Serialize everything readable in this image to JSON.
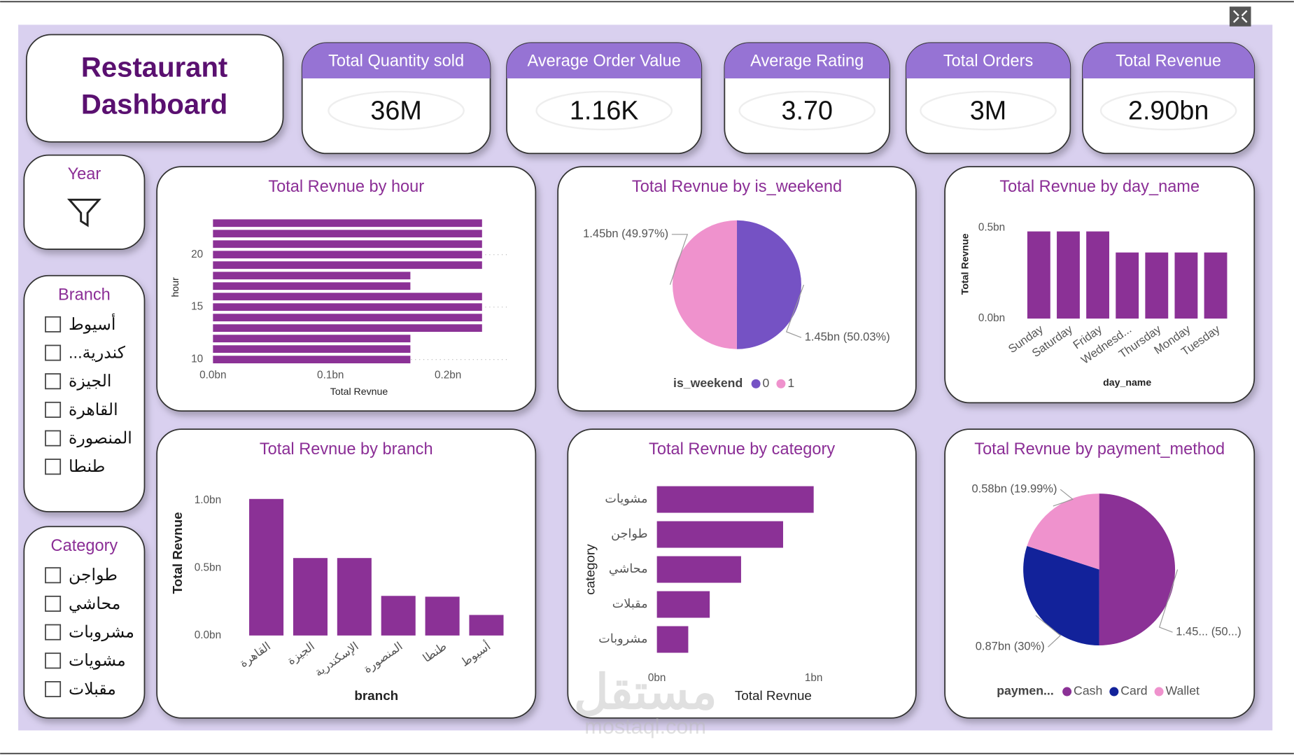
{
  "title": [
    "Restaurant",
    "Dashboard"
  ],
  "kpis": [
    {
      "label": "Total Quantity sold",
      "value": "36M"
    },
    {
      "label": "Average Order Value",
      "value": "1.16K"
    },
    {
      "label": "Average Rating",
      "value": "3.70"
    },
    {
      "label": "Total Orders",
      "value": "3M"
    },
    {
      "label": "Total Revenue",
      "value": "2.90bn"
    }
  ],
  "slicers": [
    {
      "title": "Year"
    },
    {
      "title": "Branch",
      "items": [
        "أسيوط",
        "...كندرية",
        "الجيزة",
        "القاهرة",
        "المنصورة",
        "طنطا"
      ]
    },
    {
      "title": "Category",
      "items": [
        "طواجن",
        "محاشي",
        "مشروبات",
        "مشويات",
        "مقبلات"
      ]
    }
  ],
  "watermark": [
    "مستقل",
    "mostaql.com"
  ],
  "chart_data": [
    {
      "type": "hbar",
      "title": "Total Revnue by hour",
      "categories": [
        10,
        11,
        12,
        13,
        14,
        15,
        16,
        17,
        18,
        19,
        20,
        21,
        22,
        23
      ],
      "values": [
        0.168,
        0.168,
        0.168,
        0.229,
        0.229,
        0.229,
        0.229,
        0.168,
        0.168,
        0.229,
        0.229,
        0.229,
        0.229,
        0.229
      ],
      "color": "#8b3196",
      "xlim": [
        0,
        0.25
      ],
      "xticks": [
        {
          "value": 0,
          "label": "0.0bn"
        },
        {
          "value": 0.1,
          "label": "0.1bn"
        },
        {
          "value": 0.2,
          "label": "0.2bn"
        }
      ],
      "ylim": [
        9.5,
        23.5
      ],
      "yticks": [
        10,
        15,
        20
      ],
      "xlabel": "Total Revnue",
      "ylabel": "hour",
      "grid": true
    },
    {
      "type": "pie",
      "title": "Total Revnue by is_weekend",
      "categories": [
        "0",
        "1"
      ],
      "values": [
        50.03,
        49.97
      ],
      "value_labels": [
        "1.45bn (50.03%)",
        "1.45bn (49.97%)"
      ],
      "colors": [
        "#7552c4",
        "#ef92cd"
      ],
      "legend_title": "is_weekend"
    },
    {
      "type": "bar",
      "title": "Total Revnue by day_name",
      "categories": [
        "Sunday",
        "Saturday",
        "Friday",
        "Wednesd...",
        "Thursday",
        "Monday",
        "Tuesday"
      ],
      "values": [
        0.48,
        0.48,
        0.48,
        0.364,
        0.364,
        0.364,
        0.364
      ],
      "color": "#8b3196",
      "ylim": [
        0,
        0.5
      ],
      "yticks": [
        {
          "value": 0,
          "label": "0.0bn"
        },
        {
          "value": 0.5,
          "label": "0.5bn"
        }
      ],
      "xlabel": "day_name",
      "ylabel": "Total Revnue"
    },
    {
      "type": "bar",
      "title": "Total Revnue by branch",
      "categories": [
        "القاهرة",
        "الجيزة",
        "الإسكندرية",
        "المنصورة",
        "طنطا",
        "أسيوط"
      ],
      "values": [
        1.01,
        0.573,
        0.573,
        0.293,
        0.287,
        0.152
      ],
      "color": "#8b3196",
      "ylim": [
        0,
        1.05
      ],
      "yticks": [
        {
          "value": 0,
          "label": "0.0bn"
        },
        {
          "value": 0.5,
          "label": "0.5bn"
        },
        {
          "value": 1,
          "label": "1.0bn"
        }
      ],
      "xlabel": "branch",
      "ylabel": "Total Revnue"
    },
    {
      "type": "hbar",
      "title": "Total Revnue by category",
      "categories": [
        "مشويات",
        "طواجن",
        "محاشي",
        "مقبلات",
        "مشروبات"
      ],
      "values": [
        1.0,
        0.805,
        0.537,
        0.337,
        0.2
      ],
      "color": "#8b3196",
      "xlim": [
        0,
        1.1
      ],
      "xticks": [
        {
          "value": 0,
          "label": "0bn"
        },
        {
          "value": 1,
          "label": "1bn"
        }
      ],
      "xlabel": "Total Revnue",
      "ylabel": "category"
    },
    {
      "type": "pie",
      "title": "Total Revnue by payment_method",
      "categories": [
        "Cash",
        "Card",
        "Wallet"
      ],
      "values": [
        50.01,
        30,
        19.99
      ],
      "value_labels": [
        "1.45... (50...)",
        "0.87bn (30%)",
        "0.58bn (19.99%)"
      ],
      "colors": [
        "#8b3196",
        "#12229a",
        "#ef92cd"
      ],
      "legend_title": "paymen..."
    }
  ]
}
